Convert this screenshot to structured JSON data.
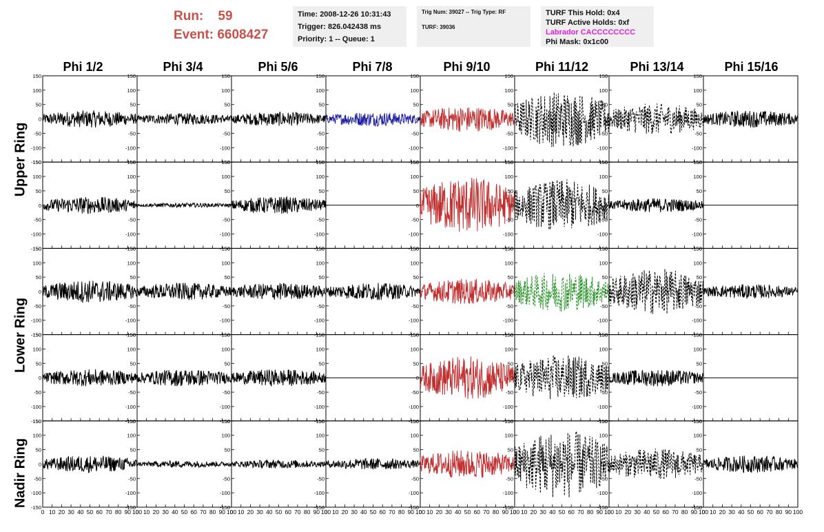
{
  "run_event": {
    "run_label": "Run:",
    "run_value": "59",
    "event_label": "Event:",
    "event_value": "6608427"
  },
  "info_time": {
    "time": "Time: 2008-12-26 10:31:43",
    "trigger": "Trigger: 826.042438 ms",
    "priority": "Priority: 1 -- Queue: 1"
  },
  "info_trig": {
    "trig": "Trig Num: 39027 -- Trig Type: RF",
    "turf": "TURF: 39036"
  },
  "info_turf": {
    "this_hold": "TURF This Hold: 0x4",
    "active_holds": "TURF Active Holds: 0xf",
    "labrador": "Labrador CACCCCCCCC",
    "phi_mask": "Phi Mask: 0x1c00"
  },
  "phi_headers": [
    "Phi 1/2",
    "Phi 3/4",
    "Phi 5/6",
    "Phi 7/8",
    "Phi 9/10",
    "Phi 11/12",
    "Phi 13/14",
    "Phi 15/16"
  ],
  "ring_labels": {
    "upper": "Upper Ring",
    "lower": "Lower Ring",
    "nadir": "Nadir Ring"
  },
  "colors": {
    "text_accent": "#c8504a",
    "labrador": "#e020e0",
    "trace_black": "#000000",
    "trace_blue": "#2020a0",
    "trace_red": "#c03030",
    "trace_green": "#209020",
    "info_bg": "#efefef"
  },
  "chart_data": {
    "type": "line",
    "xlim": [
      0,
      100
    ],
    "ylim": [
      -150,
      150
    ],
    "x_ticks": [
      "0",
      "10",
      "20",
      "30",
      "40",
      "50",
      "60",
      "70",
      "80",
      "90",
      "100"
    ],
    "y_ticks": [
      "150",
      "100",
      "50",
      "0",
      "-50",
      "-100",
      "-150"
    ],
    "rows": 5,
    "cols": 8,
    "panels": [
      {
        "row": 0,
        "col": 0,
        "color": "black",
        "style": "solid",
        "amplitude": 30
      },
      {
        "row": 0,
        "col": 1,
        "color": "black",
        "style": "solid",
        "amplitude": 20
      },
      {
        "row": 0,
        "col": 2,
        "color": "black",
        "style": "solid",
        "amplitude": 25
      },
      {
        "row": 0,
        "col": 3,
        "color": "blue",
        "style": "solid",
        "amplitude": 25
      },
      {
        "row": 0,
        "col": 4,
        "color": "red",
        "style": "solid",
        "amplitude": 45
      },
      {
        "row": 0,
        "col": 5,
        "color": "black",
        "style": "dashed",
        "amplitude": 100
      },
      {
        "row": 0,
        "col": 6,
        "color": "black",
        "style": "dashed",
        "amplitude": 55
      },
      {
        "row": 0,
        "col": 7,
        "color": "black",
        "style": "solid",
        "amplitude": 30
      },
      {
        "row": 1,
        "col": 0,
        "color": "black",
        "style": "solid",
        "amplitude": 30
      },
      {
        "row": 1,
        "col": 1,
        "color": "black",
        "style": "solid",
        "amplitude": 8
      },
      {
        "row": 1,
        "col": 2,
        "color": "black",
        "style": "solid",
        "amplitude": 30
      },
      {
        "row": 1,
        "col": 3,
        "color": "black",
        "style": "flat",
        "amplitude": 0
      },
      {
        "row": 1,
        "col": 4,
        "color": "red",
        "style": "solid",
        "amplitude": 100
      },
      {
        "row": 1,
        "col": 5,
        "color": "black",
        "style": "dashed",
        "amplitude": 90
      },
      {
        "row": 1,
        "col": 6,
        "color": "black",
        "style": "solid",
        "amplitude": 25
      },
      {
        "row": 1,
        "col": 7,
        "color": "black",
        "style": "flat",
        "amplitude": 0
      },
      {
        "row": 2,
        "col": 0,
        "color": "black",
        "style": "solid",
        "amplitude": 40
      },
      {
        "row": 2,
        "col": 1,
        "color": "black",
        "style": "solid",
        "amplitude": 30
      },
      {
        "row": 2,
        "col": 2,
        "color": "black",
        "style": "solid",
        "amplitude": 30
      },
      {
        "row": 2,
        "col": 3,
        "color": "black",
        "style": "solid",
        "amplitude": 30
      },
      {
        "row": 2,
        "col": 4,
        "color": "red",
        "style": "solid",
        "amplitude": 45
      },
      {
        "row": 2,
        "col": 5,
        "color": "green",
        "style": "dashed",
        "amplitude": 70
      },
      {
        "row": 2,
        "col": 6,
        "color": "black",
        "style": "dashed",
        "amplitude": 80
      },
      {
        "row": 2,
        "col": 7,
        "color": "black",
        "style": "solid",
        "amplitude": 25
      },
      {
        "row": 3,
        "col": 0,
        "color": "black",
        "style": "solid",
        "amplitude": 30
      },
      {
        "row": 3,
        "col": 1,
        "color": "black",
        "style": "solid",
        "amplitude": 30
      },
      {
        "row": 3,
        "col": 2,
        "color": "black",
        "style": "solid",
        "amplitude": 30
      },
      {
        "row": 3,
        "col": 3,
        "color": "black",
        "style": "flat",
        "amplitude": 0
      },
      {
        "row": 3,
        "col": 4,
        "color": "red",
        "style": "solid",
        "amplitude": 75
      },
      {
        "row": 3,
        "col": 5,
        "color": "black",
        "style": "dashed",
        "amplitude": 80
      },
      {
        "row": 3,
        "col": 6,
        "color": "black",
        "style": "solid",
        "amplitude": 30
      },
      {
        "row": 3,
        "col": 7,
        "color": "black",
        "style": "flat",
        "amplitude": 0
      },
      {
        "row": 4,
        "col": 0,
        "color": "black",
        "style": "solid",
        "amplitude": 30
      },
      {
        "row": 4,
        "col": 1,
        "color": "black",
        "style": "solid",
        "amplitude": 12
      },
      {
        "row": 4,
        "col": 2,
        "color": "black",
        "style": "solid",
        "amplitude": 15
      },
      {
        "row": 4,
        "col": 3,
        "color": "black",
        "style": "solid",
        "amplitude": 20
      },
      {
        "row": 4,
        "col": 4,
        "color": "red",
        "style": "solid",
        "amplitude": 50
      },
      {
        "row": 4,
        "col": 5,
        "color": "black",
        "style": "dashed",
        "amplitude": 120
      },
      {
        "row": 4,
        "col": 6,
        "color": "black",
        "style": "dashed",
        "amplitude": 55
      },
      {
        "row": 4,
        "col": 7,
        "color": "black",
        "style": "solid",
        "amplitude": 30
      }
    ]
  }
}
